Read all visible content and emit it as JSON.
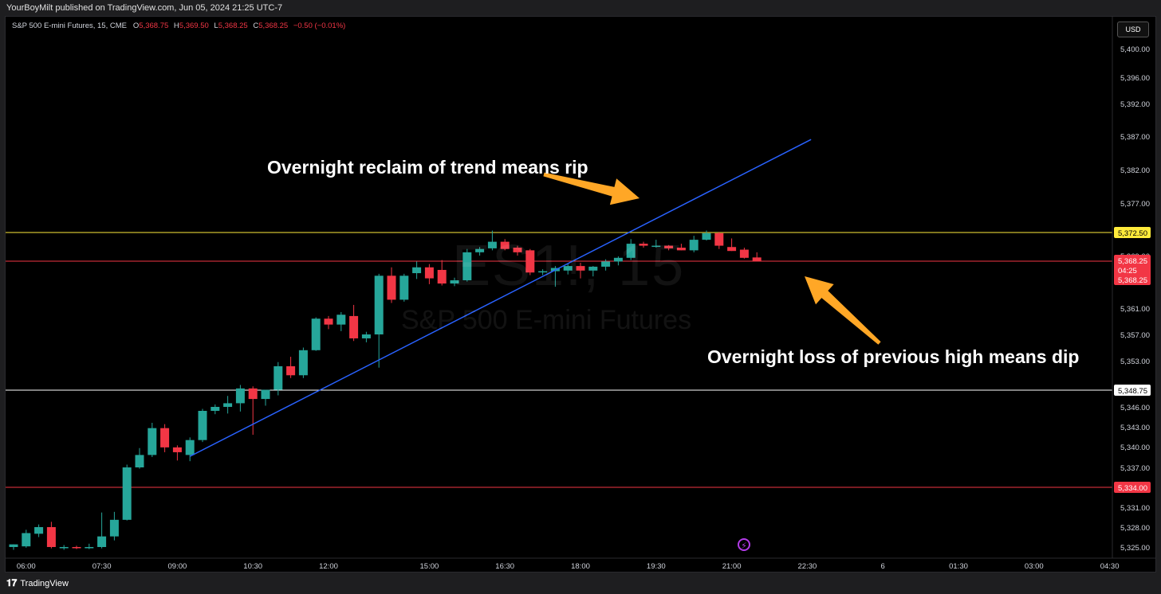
{
  "header": {
    "publisher_text": "YourBoyMilt published on TradingView.com, Jun 05, 2024 21:25 UTC-7"
  },
  "legend": {
    "symbol_text": "S&P 500 E-mini Futures, 15, CME",
    "open_label": "O",
    "open_value": "5,368.75",
    "high_label": "H",
    "high_value": "5,369.50",
    "low_label": "L",
    "low_value": "5,368.25",
    "close_label": "C",
    "close_value": "5,368.25",
    "change_value": "−0.50 (−0.01%)"
  },
  "currency_button": "USD",
  "watermark": {
    "symbol": "ES1!, 15",
    "description": "S&P 500 E-mini Futures"
  },
  "annotations": {
    "top": "Overnight reclaim of trend means rip",
    "bottom": "Overnight loss of previous high means dip"
  },
  "footer": {
    "logo_icon": "tradingview-logo-icon",
    "label": "TradingView"
  },
  "colors": {
    "up": "#26a69a",
    "down": "#f23645",
    "trendline": "#2962ff",
    "yellow_line": "#ffeb3b",
    "red_line": "#f23645",
    "white_line": "#ffffff",
    "arrow": "#ffa726"
  },
  "chart_data": {
    "type": "candlestick",
    "ylim": [
      5323.5,
      5402.5
    ],
    "y_ticks": [
      {
        "label": "5,400.00",
        "value": 5400
      },
      {
        "label": "5,396.00",
        "value": 5396
      },
      {
        "label": "5,392.00",
        "value": 5392
      },
      {
        "label": "5,387.00",
        "value": 5387
      },
      {
        "label": "5,382.00",
        "value": 5382
      },
      {
        "label": "5,377.00",
        "value": 5377
      },
      {
        "label": "5,369.00",
        "value": 5369
      },
      {
        "label": "5,361.00",
        "value": 5361
      },
      {
        "label": "5,357.00",
        "value": 5357
      },
      {
        "label": "5,353.00",
        "value": 5353
      },
      {
        "label": "5,346.00",
        "value": 5346
      },
      {
        "label": "5,343.00",
        "value": 5343
      },
      {
        "label": "5,340.00",
        "value": 5340
      },
      {
        "label": "5,337.00",
        "value": 5337
      },
      {
        "label": "5,331.00",
        "value": 5331
      },
      {
        "label": "5,328.00",
        "value": 5328
      },
      {
        "label": "5,325.00",
        "value": 5325
      }
    ],
    "x_ticks": [
      {
        "label": "06:00",
        "index": 1
      },
      {
        "label": "07:30",
        "index": 7
      },
      {
        "label": "09:00",
        "index": 13
      },
      {
        "label": "10:30",
        "index": 19
      },
      {
        "label": "12:00",
        "index": 25
      },
      {
        "label": "15:00",
        "index": 33
      },
      {
        "label": "16:30",
        "index": 39
      },
      {
        "label": "18:00",
        "index": 45
      },
      {
        "label": "19:30",
        "index": 51
      },
      {
        "label": "21:00",
        "index": 57
      },
      {
        "label": "22:30",
        "index": 63
      },
      {
        "label": "6",
        "index": 69
      },
      {
        "label": "01:30",
        "index": 75
      },
      {
        "label": "03:00",
        "index": 81
      },
      {
        "label": "04:30",
        "index": 87
      }
    ],
    "candles": [
      {
        "o": 5325.0,
        "h": 5325.4,
        "l": 5324.6,
        "c": 5325.4
      },
      {
        "o": 5325.1,
        "h": 5327.6,
        "l": 5324.9,
        "c": 5327.1
      },
      {
        "o": 5327.0,
        "h": 5328.4,
        "l": 5326.5,
        "c": 5328.0
      },
      {
        "o": 5328.0,
        "h": 5328.8,
        "l": 5324.8,
        "c": 5325.0
      },
      {
        "o": 5325.0,
        "h": 5325.3,
        "l": 5324.6,
        "c": 5325.0
      },
      {
        "o": 5325.0,
        "h": 5325.2,
        "l": 5324.7,
        "c": 5324.9
      },
      {
        "o": 5324.9,
        "h": 5325.5,
        "l": 5324.7,
        "c": 5325.0
      },
      {
        "o": 5325.0,
        "h": 5330.2,
        "l": 5324.8,
        "c": 5326.6
      },
      {
        "o": 5326.6,
        "h": 5330.3,
        "l": 5326.0,
        "c": 5329.1
      },
      {
        "o": 5329.1,
        "h": 5337.4,
        "l": 5329.0,
        "c": 5337.0
      },
      {
        "o": 5337.0,
        "h": 5339.8,
        "l": 5336.8,
        "c": 5338.8
      },
      {
        "o": 5338.8,
        "h": 5343.6,
        "l": 5338.5,
        "c": 5342.8
      },
      {
        "o": 5342.8,
        "h": 5343.4,
        "l": 5339.2,
        "c": 5339.9
      },
      {
        "o": 5339.9,
        "h": 5340.2,
        "l": 5338.0,
        "c": 5339.2
      },
      {
        "o": 5338.8,
        "h": 5341.4,
        "l": 5337.9,
        "c": 5341.0
      },
      {
        "o": 5341.0,
        "h": 5345.7,
        "l": 5340.7,
        "c": 5345.4
      },
      {
        "o": 5345.4,
        "h": 5346.4,
        "l": 5344.9,
        "c": 5346.0
      },
      {
        "o": 5346.0,
        "h": 5347.8,
        "l": 5345.0,
        "c": 5346.6
      },
      {
        "o": 5346.6,
        "h": 5349.5,
        "l": 5345.3,
        "c": 5349.0
      },
      {
        "o": 5349.0,
        "h": 5349.3,
        "l": 5341.8,
        "c": 5347.3
      },
      {
        "o": 5347.3,
        "h": 5348.8,
        "l": 5346.2,
        "c": 5348.8
      },
      {
        "o": 5348.8,
        "h": 5352.8,
        "l": 5347.9,
        "c": 5352.2
      },
      {
        "o": 5352.2,
        "h": 5353.6,
        "l": 5350.5,
        "c": 5350.9
      },
      {
        "o": 5350.9,
        "h": 5355.0,
        "l": 5350.5,
        "c": 5354.6
      },
      {
        "o": 5354.6,
        "h": 5359.6,
        "l": 5354.5,
        "c": 5359.4
      },
      {
        "o": 5359.4,
        "h": 5359.8,
        "l": 5357.8,
        "c": 5358.5
      },
      {
        "o": 5358.5,
        "h": 5360.4,
        "l": 5357.5,
        "c": 5360.0
      },
      {
        "o": 5359.8,
        "h": 5361.5,
        "l": 5356.0,
        "c": 5356.4
      },
      {
        "o": 5356.4,
        "h": 5357.4,
        "l": 5355.8,
        "c": 5357.0
      },
      {
        "o": 5357.0,
        "h": 5366.3,
        "l": 5352.0,
        "c": 5366.0
      },
      {
        "o": 5366.0,
        "h": 5367.3,
        "l": 5361.8,
        "c": 5362.3
      },
      {
        "o": 5362.3,
        "h": 5366.3,
        "l": 5362.0,
        "c": 5366.0
      },
      {
        "o": 5366.4,
        "h": 5368.2,
        "l": 5365.5,
        "c": 5367.3
      },
      {
        "o": 5367.3,
        "h": 5367.8,
        "l": 5364.7,
        "c": 5365.6
      },
      {
        "o": 5366.9,
        "h": 5368.4,
        "l": 5364.5,
        "c": 5364.8
      },
      {
        "o": 5364.8,
        "h": 5365.7,
        "l": 5364.4,
        "c": 5365.3
      },
      {
        "o": 5365.3,
        "h": 5370.0,
        "l": 5365.1,
        "c": 5369.5
      },
      {
        "o": 5369.5,
        "h": 5370.3,
        "l": 5369.0,
        "c": 5370.0
      },
      {
        "o": 5370.1,
        "h": 5372.8,
        "l": 5369.8,
        "c": 5371.1
      },
      {
        "o": 5371.1,
        "h": 5371.5,
        "l": 5369.8,
        "c": 5370.0
      },
      {
        "o": 5370.2,
        "h": 5370.5,
        "l": 5369.0,
        "c": 5369.5
      },
      {
        "o": 5369.8,
        "h": 5370.0,
        "l": 5366.1,
        "c": 5366.5
      },
      {
        "o": 5366.7,
        "h": 5367.0,
        "l": 5366.1,
        "c": 5366.7
      },
      {
        "o": 5366.7,
        "h": 5367.5,
        "l": 5364.3,
        "c": 5367.2
      },
      {
        "o": 5366.8,
        "h": 5367.9,
        "l": 5366.2,
        "c": 5367.5
      },
      {
        "o": 5367.5,
        "h": 5368.0,
        "l": 5365.6,
        "c": 5366.8
      },
      {
        "o": 5366.8,
        "h": 5367.5,
        "l": 5365.9,
        "c": 5367.4
      },
      {
        "o": 5367.4,
        "h": 5368.5,
        "l": 5366.8,
        "c": 5368.2
      },
      {
        "o": 5368.2,
        "h": 5368.9,
        "l": 5367.6,
        "c": 5368.7
      },
      {
        "o": 5368.7,
        "h": 5371.5,
        "l": 5368.4,
        "c": 5370.8
      },
      {
        "o": 5370.8,
        "h": 5371.1,
        "l": 5370.2,
        "c": 5370.5
      },
      {
        "o": 5370.5,
        "h": 5371.4,
        "l": 5370.2,
        "c": 5370.5
      },
      {
        "o": 5370.5,
        "h": 5370.6,
        "l": 5369.8,
        "c": 5370.1
      },
      {
        "o": 5370.2,
        "h": 5370.8,
        "l": 5369.8,
        "c": 5369.8
      },
      {
        "o": 5369.8,
        "h": 5372.0,
        "l": 5369.5,
        "c": 5371.4
      },
      {
        "o": 5371.4,
        "h": 5372.8,
        "l": 5371.3,
        "c": 5372.4
      },
      {
        "o": 5372.4,
        "h": 5372.6,
        "l": 5370.0,
        "c": 5370.5
      },
      {
        "o": 5370.3,
        "h": 5371.6,
        "l": 5369.7,
        "c": 5369.7
      },
      {
        "o": 5369.9,
        "h": 5370.2,
        "l": 5368.6,
        "c": 5368.7
      },
      {
        "o": 5368.75,
        "h": 5369.5,
        "l": 5368.25,
        "c": 5368.25
      }
    ],
    "lines": [
      {
        "name": "yellow",
        "value": 5372.5,
        "label": "5,372.50"
      },
      {
        "name": "red-upper",
        "value": 5368.25,
        "label": "5,368.25"
      },
      {
        "name": "white",
        "value": 5348.75,
        "label": "5,348.75"
      },
      {
        "name": "red-lower",
        "value": 5334.0,
        "label": "5,334.00"
      }
    ],
    "last_price": {
      "value": 5368.25,
      "label": "5,368.25",
      "countdown": "04:25",
      "label2": "5,368.25"
    },
    "trendline": {
      "start_index": 14,
      "start_value": 5338.6,
      "end_index": 63.3,
      "end_value": 5386.5
    }
  }
}
